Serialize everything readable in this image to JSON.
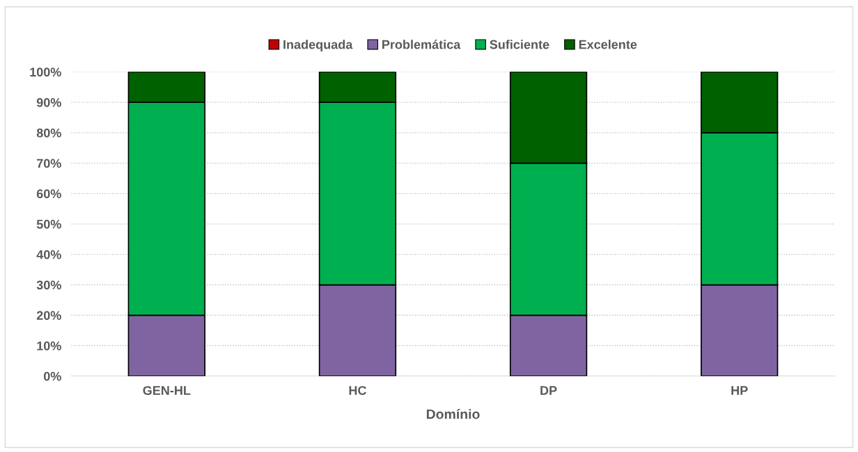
{
  "chart_data": {
    "type": "bar",
    "stacked": true,
    "xlabel": "Domínio",
    "categories": [
      "GEN-HL",
      "HC",
      "DP",
      "HP"
    ],
    "series": [
      {
        "name": "Inadequada",
        "color": "#c00000",
        "values": [
          0,
          0,
          0,
          0
        ]
      },
      {
        "name": "Problemática",
        "color": "#8064a2",
        "values": [
          20,
          30,
          20,
          30
        ]
      },
      {
        "name": "Suficiente",
        "color": "#00b050",
        "values": [
          70,
          60,
          50,
          50
        ]
      },
      {
        "name": "Excelente",
        "color": "#006100",
        "values": [
          10,
          10,
          30,
          20
        ]
      }
    ],
    "ylim": [
      0,
      100
    ],
    "yticks": [
      {
        "value": 0,
        "label": "0%"
      },
      {
        "value": 10,
        "label": "10%"
      },
      {
        "value": 20,
        "label": "20%"
      },
      {
        "value": 30,
        "label": "30%"
      },
      {
        "value": 40,
        "label": "40%"
      },
      {
        "value": 50,
        "label": "50%"
      },
      {
        "value": 60,
        "label": "60%"
      },
      {
        "value": 70,
        "label": "70%"
      },
      {
        "value": 80,
        "label": "80%"
      },
      {
        "value": 90,
        "label": "90%"
      },
      {
        "value": 100,
        "label": "100%"
      }
    ],
    "grid": "y",
    "legend": "top"
  }
}
